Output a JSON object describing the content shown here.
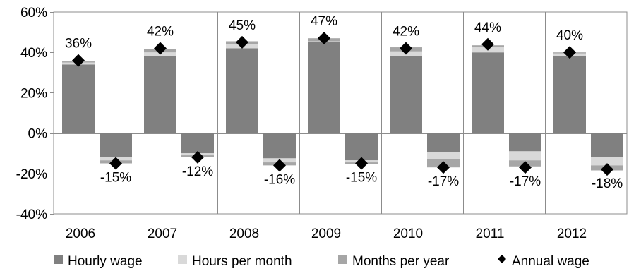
{
  "chart_data": {
    "type": "bar",
    "stacked": true,
    "categories": [
      "2006",
      "2007",
      "2008",
      "2009",
      "2010",
      "2011",
      "2012"
    ],
    "groups": [
      "positive",
      "negative"
    ],
    "ylim": [
      -40,
      60
    ],
    "yticks": [
      -40,
      -20,
      0,
      20,
      40,
      60
    ],
    "ytick_labels": [
      "-40%",
      "-20%",
      "0%",
      "20%",
      "40%",
      "60%"
    ],
    "grid": false,
    "legend_position": "bottom",
    "colors": {
      "hourly_wage": "#808080",
      "hours_per_month": "#d9d9d9",
      "months_per_year": "#a6a6a6",
      "annual_wage": "#000000"
    },
    "series": [
      {
        "name": "Hourly wage",
        "key": "hourly_wage",
        "positive": [
          34,
          38,
          42,
          45,
          38,
          40,
          38
        ],
        "negative": [
          -12,
          -10,
          -12.5,
          -13.5,
          -9.5,
          -9,
          -12
        ]
      },
      {
        "name": "Hours per month",
        "key": "hours_per_month",
        "positive": [
          1,
          2,
          2,
          0.5,
          2.5,
          2.5,
          1.5
        ],
        "negative": [
          -1.5,
          -1,
          -2,
          -1,
          -3.5,
          -4.5,
          -4
        ]
      },
      {
        "name": "Months per year",
        "key": "months_per_year",
        "positive": [
          0.5,
          1.5,
          1.5,
          1.5,
          2,
          1,
          0.5
        ],
        "negative": [
          -1.5,
          -0.8,
          -1.5,
          -0.8,
          -4,
          -3,
          -2.5
        ]
      }
    ],
    "annual_wage": {
      "name": "Annual wage",
      "positive": [
        36,
        42,
        45,
        47,
        42,
        44,
        40
      ],
      "negative": [
        -15,
        -12,
        -16,
        -15,
        -17,
        -17,
        -18
      ],
      "positive_labels": [
        "36%",
        "42%",
        "45%",
        "47%",
        "42%",
        "44%",
        "40%"
      ],
      "negative_labels": [
        "-15%",
        "-12%",
        "-16%",
        "-15%",
        "-17%",
        "-17%",
        "-18%"
      ]
    },
    "legend": [
      "Hourly wage",
      "Hours per month",
      "Months per year",
      "Annual wage"
    ]
  }
}
